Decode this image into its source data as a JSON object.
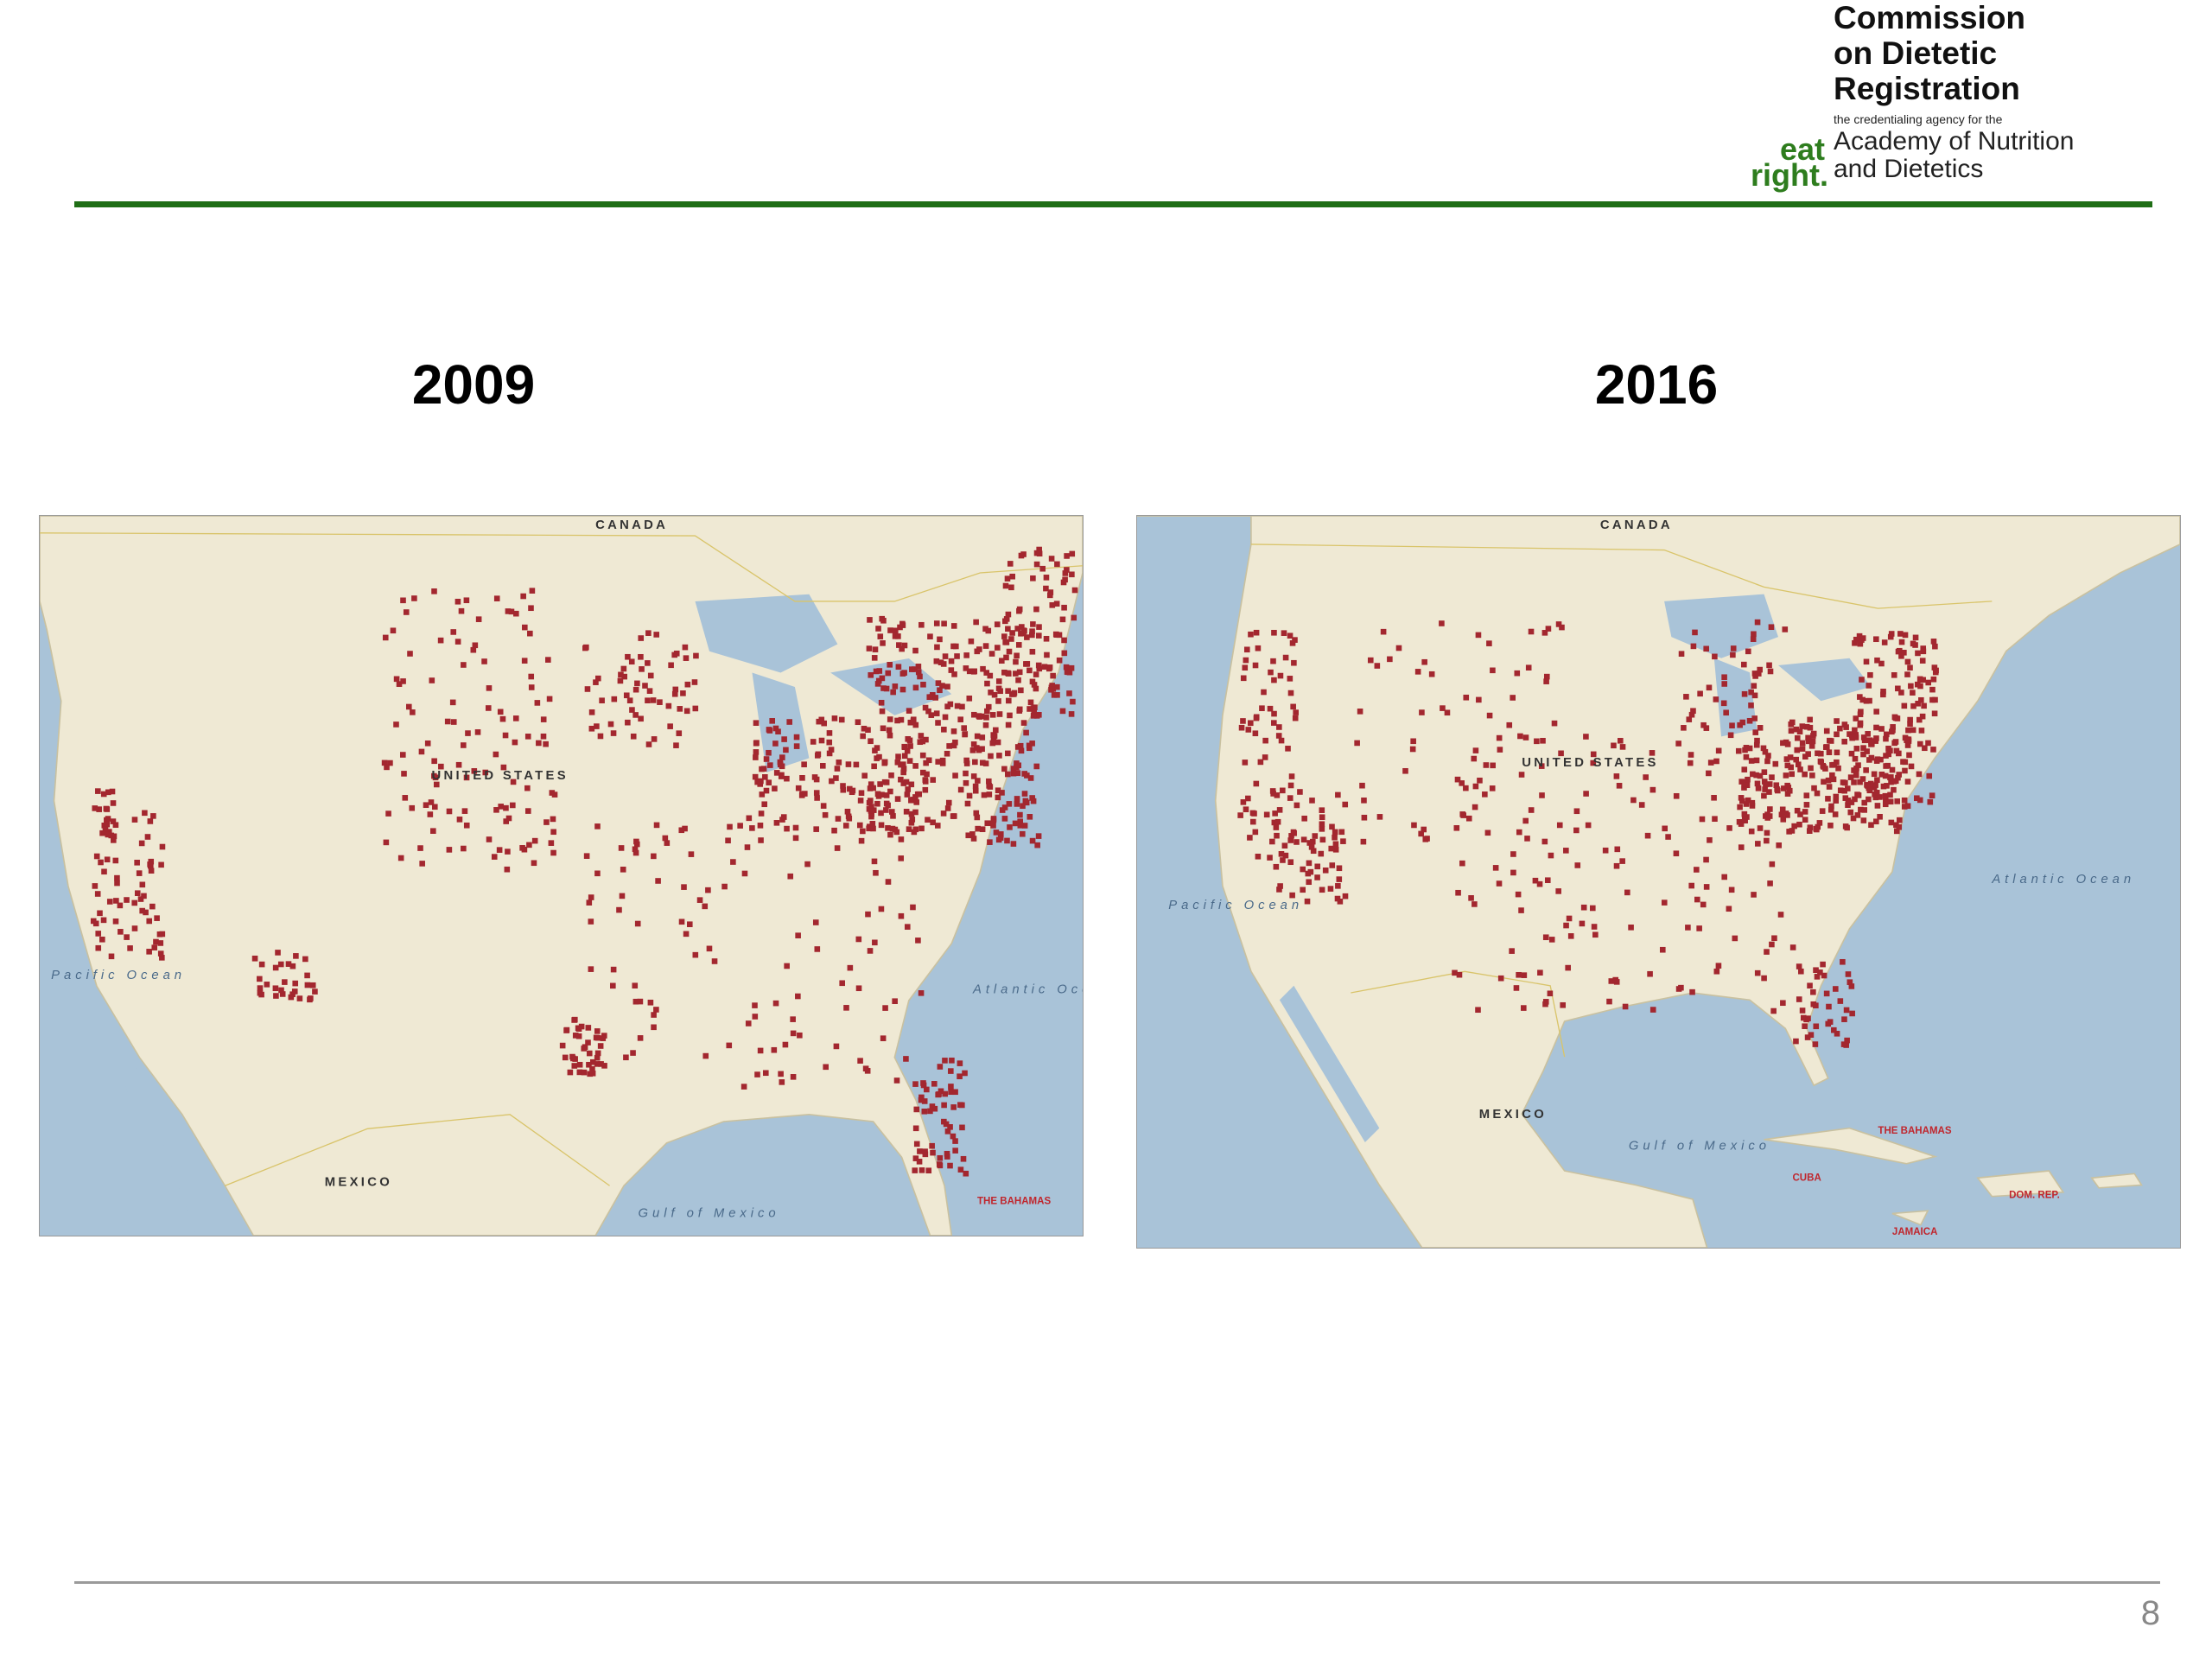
{
  "header": {
    "logo_title": [
      "Commission",
      "on Dietetic",
      "Registration"
    ],
    "logo_tagline": "the credentialing agency for the",
    "logo_mark": [
      "eat",
      "right."
    ],
    "logo_org": [
      "Academy of Nutrition",
      "and Dietetics"
    ]
  },
  "maps": [
    {
      "year": "2009",
      "labels": {
        "country_north": "CANADA",
        "country": "UNITED STATES",
        "country_south": "MEXICO",
        "ocean_east": "Atlantic Ocean",
        "ocean_west": "Pacific Ocean",
        "gulf": "Gulf of Mexico",
        "islands": "THE BAHAMAS"
      }
    },
    {
      "year": "2016",
      "labels": {
        "country_north": "CANADA",
        "country": "UNITED STATES",
        "country_south": "MEXICO",
        "ocean_east": "Atlantic Ocean",
        "ocean_west": "Pacific Ocean",
        "gulf": "Gulf of Mexico",
        "islands": "THE BAHAMAS",
        "cuba": "CUBA",
        "jamaica": "JAMAICA",
        "dr": "DOM. REP."
      }
    }
  ],
  "footer": {
    "page_number": "8"
  }
}
